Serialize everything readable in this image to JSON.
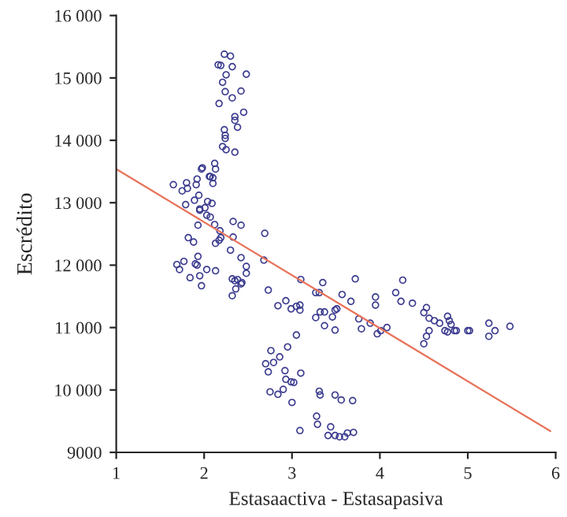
{
  "chart_data": {
    "type": "scatter",
    "xlabel": "Estasaactiva - Estasapasiva",
    "ylabel": "Escrédito",
    "xlim": [
      1,
      6
    ],
    "ylim": [
      9000,
      16000
    ],
    "xticks": [
      1,
      2,
      3,
      4,
      5,
      6
    ],
    "yticks": [
      {
        "value": 9000,
        "label": "9000"
      },
      {
        "value": 10000,
        "label": "10 000"
      },
      {
        "value": 11000,
        "label": "11 000"
      },
      {
        "value": 12000,
        "label": "12 000"
      },
      {
        "value": 13000,
        "label": "13 000"
      },
      {
        "value": 14000,
        "label": "14 000"
      },
      {
        "value": 15000,
        "label": "15 000"
      },
      {
        "value": 16000,
        "label": "16 000"
      }
    ],
    "grid": false,
    "legend": false,
    "series": [
      {
        "marker": "circle",
        "color": "#3b3b8f",
        "x": [
          2.23,
          2.3,
          2.16,
          2.19,
          2.32,
          2.25,
          2.48,
          2.21,
          2.24,
          2.32,
          2.42,
          2.17,
          2.45,
          2.35,
          2.35,
          2.38,
          2.23,
          2.24,
          2.24,
          2.21,
          2.25,
          2.35,
          2.12,
          2.13,
          1.98,
          1.97,
          2.06,
          2.1,
          2.1,
          2.07,
          1.65,
          1.8,
          1.75,
          1.91,
          1.92,
          1.81,
          1.94,
          1.79,
          1.89,
          2.04,
          2.09,
          2.01,
          1.95,
          2.03,
          1.95,
          2.07,
          1.93,
          2.12,
          2.18,
          2.33,
          2.42,
          2.33,
          2.19,
          2.17,
          2.13,
          1.82,
          1.88,
          1.93,
          1.69,
          1.72,
          1.77,
          1.9,
          1.92,
          1.84,
          1.95,
          2.03,
          2.13,
          1.97,
          2.3,
          2.42,
          2.48,
          2.48,
          2.32,
          2.35,
          2.38,
          2.42,
          2.36,
          2.43,
          2.32,
          2.69,
          2.68,
          2.73,
          2.84,
          3.1,
          2.93,
          3.05,
          2.99,
          3.09,
          3.09,
          3.27,
          3.31,
          3.35,
          3.27,
          3.32,
          3.37,
          3.37,
          3.46,
          3.49,
          3.51,
          3.49,
          3.57,
          3.67,
          3.72,
          3.76,
          3.79,
          3.89,
          3.95,
          3.95,
          3.97,
          4.08,
          4.01,
          4.18,
          4.24,
          4.26,
          4.37,
          2.7,
          2.76,
          2.79,
          2.86,
          2.73,
          2.92,
          2.93,
          2.99,
          3.02,
          3.1,
          2.95,
          3.05,
          2.75,
          2.84,
          2.9,
          3.0,
          3.31,
          3.32,
          3.49,
          3.56,
          3.69,
          3.28,
          3.29,
          3.44,
          3.09,
          3.41,
          3.49,
          3.54,
          3.6,
          3.63,
          3.7,
          4.5,
          4.53,
          4.56,
          4.62,
          4.68,
          4.77,
          4.79,
          4.81,
          4.85,
          4.56,
          4.53,
          4.5,
          4.74,
          4.77,
          4.87,
          5.0,
          5.02,
          5.24,
          5.24,
          5.31,
          5.48
        ],
        "values": [
          15380,
          15350,
          15210,
          15200,
          15180,
          15050,
          15060,
          14930,
          14780,
          14680,
          14790,
          14590,
          14450,
          14380,
          14320,
          14210,
          14170,
          14080,
          14030,
          13900,
          13850,
          13810,
          13630,
          13540,
          13560,
          13540,
          13420,
          13400,
          13310,
          13420,
          13290,
          13320,
          13190,
          13290,
          13380,
          13230,
          13120,
          12970,
          13040,
          13020,
          12990,
          12920,
          12880,
          12800,
          12900,
          12770,
          12640,
          12650,
          12550,
          12700,
          12640,
          12450,
          12440,
          12400,
          12350,
          12440,
          12370,
          12140,
          12010,
          11930,
          12060,
          12020,
          12000,
          11800,
          11830,
          11930,
          11910,
          11670,
          12240,
          12120,
          11980,
          11870,
          11780,
          11750,
          11770,
          11700,
          11620,
          11720,
          11510,
          12510,
          12080,
          11600,
          11350,
          11770,
          11430,
          11340,
          11300,
          11360,
          11280,
          11560,
          11560,
          11720,
          11160,
          11250,
          11250,
          11030,
          11170,
          11280,
          11300,
          10960,
          11530,
          11420,
          11780,
          11140,
          10980,
          11070,
          11490,
          11360,
          10900,
          11000,
          10950,
          11560,
          11420,
          11760,
          11390,
          10420,
          10630,
          10440,
          10530,
          10290,
          10310,
          10170,
          10130,
          10120,
          10270,
          10690,
          10880,
          9970,
          9930,
          10010,
          9800,
          9980,
          9920,
          9920,
          9840,
          9830,
          9580,
          9450,
          9410,
          9350,
          9270,
          9270,
          9250,
          9250,
          9310,
          9320,
          11240,
          11320,
          11150,
          11110,
          11070,
          11180,
          11110,
          11050,
          10950,
          10950,
          10860,
          10740,
          10950,
          10930,
          10950,
          10950,
          10950,
          11070,
          10860,
          10950,
          11020
        ]
      },
      {
        "type": "line",
        "marker": "none",
        "line_style": "solid",
        "color": "#e8735a",
        "x": [
          1,
          5.94
        ],
        "values": [
          13540,
          9340
        ]
      }
    ]
  }
}
